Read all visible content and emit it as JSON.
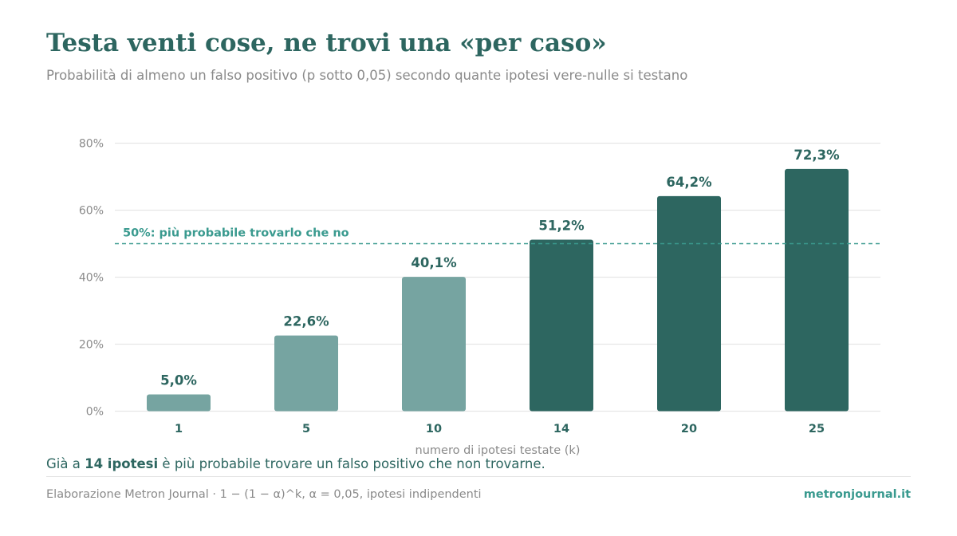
{
  "header": {
    "title": "Testa venti cose, ne trovi una «per caso»",
    "subtitle": "Probabilità di almeno un falso positivo (p sotto 0,05) secondo quante ipotesi vere-nulle si testano"
  },
  "takeaway": {
    "prefix": "Già a ",
    "highlight": "14 ipotesi",
    "suffix": " è più probabile trovare un falso positivo che non trovarne."
  },
  "footer": {
    "source": "Elaborazione Metron Journal · 1 − (1 − α)^k, α = 0,05, ipotesi indipendenti",
    "brand": "metronjournal.it"
  },
  "chart_data": {
    "type": "bar",
    "categories": [
      "1",
      "5",
      "10",
      "14",
      "20",
      "25"
    ],
    "values": [
      5.0,
      22.6,
      40.1,
      51.2,
      64.2,
      72.3
    ],
    "value_labels": [
      "5,0%",
      "22,6%",
      "40,1%",
      "51,2%",
      "64,2%",
      "72,3%"
    ],
    "xlabel": "numero di ipotesi testate (k)",
    "ylabel": "",
    "ylim": [
      0,
      80
    ],
    "yticks": [
      0,
      20,
      40,
      60,
      80
    ],
    "ytick_labels": [
      "0%",
      "20%",
      "40%",
      "60%",
      "80%"
    ],
    "grid": true,
    "reference_line": {
      "value": 50,
      "label": "50%: più probabile trovarlo che no",
      "color": "#3a9a8f"
    },
    "colors": {
      "below_threshold": "#76a4a1",
      "above_threshold": "#2d6660",
      "value_label": "#2d6660",
      "tick_label": "#8a8a8a",
      "category_label": "#2d6660",
      "gridline": "#e6e6e6"
    }
  }
}
